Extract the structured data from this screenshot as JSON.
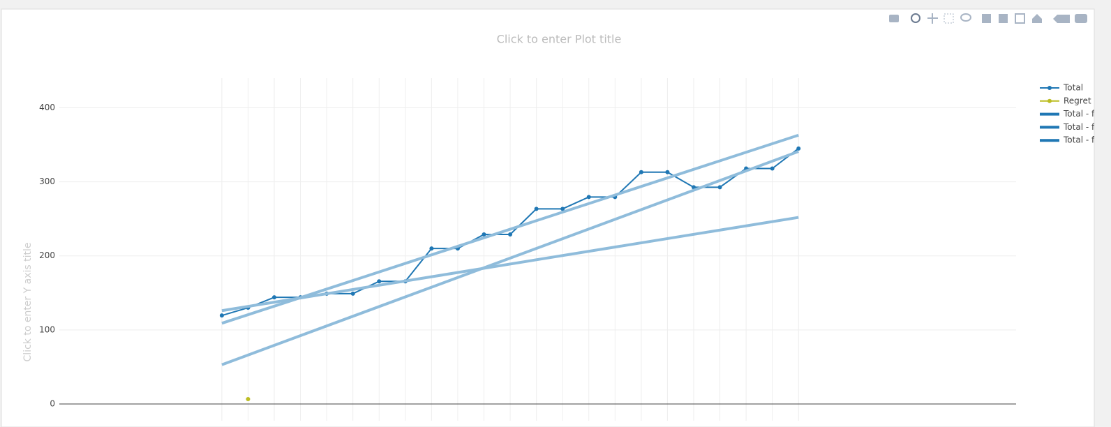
{
  "chart_data": {
    "type": "line",
    "title": "Click to enter Plot title",
    "y_label": "Click to enter Y axis title",
    "xlim": [
      -6.2,
      30.3
    ],
    "xticks": [
      0,
      1,
      2,
      3,
      4,
      5,
      6,
      7,
      8,
      9,
      10,
      11,
      12,
      13,
      14,
      15,
      16,
      17,
      18,
      19,
      20,
      21,
      22
    ],
    "ylim": [
      -22.6,
      440
    ],
    "yticks": [
      0,
      100,
      200,
      300,
      400
    ],
    "grid": true,
    "legend": "right",
    "series": [
      {
        "name": "Total",
        "color": "#1f77b4",
        "mode": "lines+markers",
        "x": [
          0,
          1,
          2,
          3,
          4,
          5,
          6,
          7,
          8,
          9,
          10,
          11,
          12,
          13,
          14,
          15,
          16,
          17,
          18,
          19,
          20,
          21,
          22
        ],
        "values": [
          119.5,
          130,
          144,
          144,
          149,
          149,
          165.6,
          165.6,
          210,
          210,
          229,
          229,
          263.5,
          263.5,
          279.5,
          279.5,
          313,
          313,
          292.7,
          292.7,
          318,
          318,
          345
        ]
      },
      {
        "name": "Regret",
        "color": "#bcbd22",
        "mode": "lines+markers",
        "x": [
          1
        ],
        "values": [
          6.6
        ]
      },
      {
        "name": "Total - fi",
        "color": "#8fbcdb",
        "mode": "lines",
        "x": [
          0,
          22
        ],
        "values": [
          126,
          252
        ]
      },
      {
        "name": "Total - fi",
        "color": "#8fbcdb",
        "mode": "lines",
        "x": [
          0,
          22
        ],
        "values": [
          109,
          363
        ]
      },
      {
        "name": "Total - fi",
        "color": "#8fbcdb",
        "mode": "lines",
        "x": [
          0,
          22
        ],
        "values": [
          53,
          341
        ]
      }
    ]
  }
}
